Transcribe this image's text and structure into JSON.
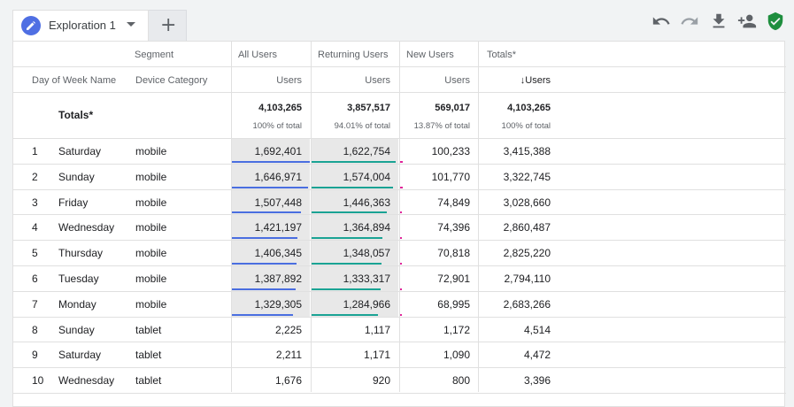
{
  "tab": {
    "label": "Exploration 1"
  },
  "columns": {
    "segment_header": "Segment",
    "dim1": "Day of Week Name",
    "dim2": "Device Category",
    "segments": [
      {
        "name": "All Users",
        "metric": "Users"
      },
      {
        "name": "Returning Users",
        "metric": "Users"
      },
      {
        "name": "New Users",
        "metric": "Users"
      },
      {
        "name": "Totals*",
        "metric": "↓Users"
      }
    ]
  },
  "totals": {
    "label": "Totals*",
    "values": [
      "4,103,265",
      "3,857,517",
      "569,017",
      "4,103,265"
    ],
    "percents": [
      "100% of total",
      "94.01% of total",
      "13.87% of total",
      "100% of total"
    ]
  },
  "rows": [
    {
      "idx": "1",
      "day": "Saturday",
      "device": "mobile",
      "all": "1,692,401",
      "ret": "1,622,754",
      "new": "100,233",
      "tot": "3,415,388"
    },
    {
      "idx": "2",
      "day": "Sunday",
      "device": "mobile",
      "all": "1,646,971",
      "ret": "1,574,004",
      "new": "101,770",
      "tot": "3,322,745"
    },
    {
      "idx": "3",
      "day": "Friday",
      "device": "mobile",
      "all": "1,507,448",
      "ret": "1,446,363",
      "new": "74,849",
      "tot": "3,028,660"
    },
    {
      "idx": "4",
      "day": "Wednesday",
      "device": "mobile",
      "all": "1,421,197",
      "ret": "1,364,894",
      "new": "74,396",
      "tot": "2,860,487"
    },
    {
      "idx": "5",
      "day": "Thursday",
      "device": "mobile",
      "all": "1,406,345",
      "ret": "1,348,057",
      "new": "70,818",
      "tot": "2,825,220"
    },
    {
      "idx": "6",
      "day": "Tuesday",
      "device": "mobile",
      "all": "1,387,892",
      "ret": "1,333,317",
      "new": "72,901",
      "tot": "2,794,110"
    },
    {
      "idx": "7",
      "day": "Monday",
      "device": "mobile",
      "all": "1,329,305",
      "ret": "1,284,966",
      "new": "68,995",
      "tot": "2,683,266"
    },
    {
      "idx": "8",
      "day": "Sunday",
      "device": "tablet",
      "all": "2,225",
      "ret": "1,117",
      "new": "1,172",
      "tot": "4,514"
    },
    {
      "idx": "9",
      "day": "Saturday",
      "device": "tablet",
      "all": "2,211",
      "ret": "1,171",
      "new": "1,090",
      "tot": "4,472"
    },
    {
      "idx": "10",
      "day": "Wednesday",
      "device": "tablet",
      "all": "1,676",
      "ret": "920",
      "new": "800",
      "tot": "3,396"
    }
  ],
  "colors": {
    "all_users": "#4a6ee0",
    "returning_users": "#1aa394",
    "new_users": "#e0259a",
    "bar_bg": "#e8e8e8",
    "shield": "#1e8e3e"
  },
  "icons": [
    "pencil-icon",
    "chevron-down-icon",
    "plus-icon",
    "undo-icon",
    "redo-icon",
    "download-icon",
    "share-users-icon",
    "shield-check-icon"
  ]
}
